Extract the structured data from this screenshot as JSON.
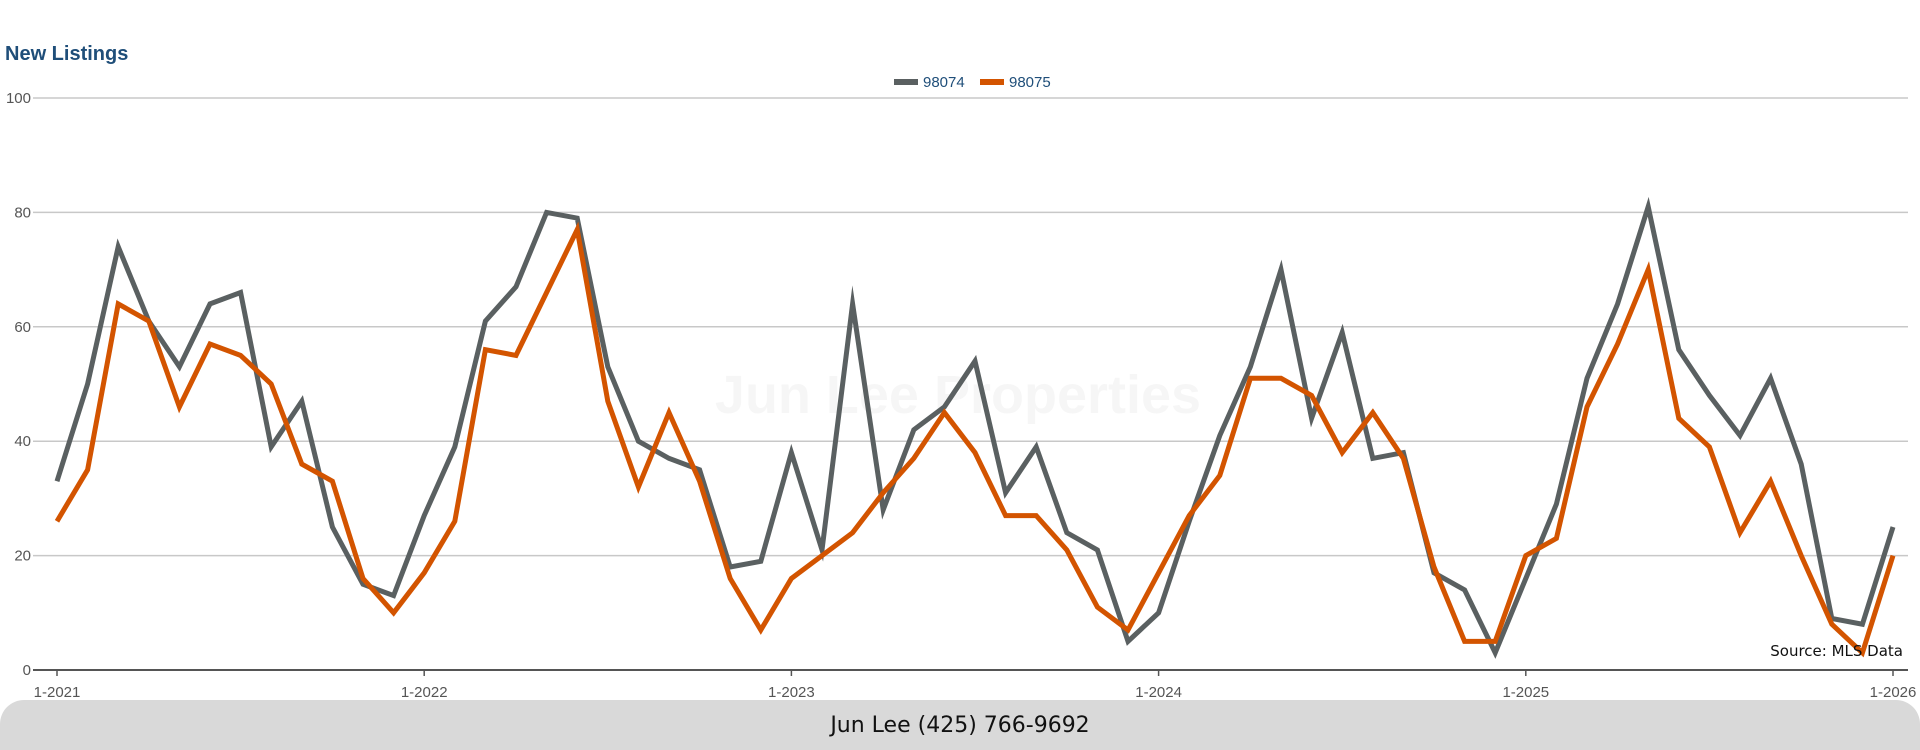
{
  "chart_data": {
    "type": "line",
    "title": "New Listings",
    "xlabel": "",
    "ylabel": "",
    "ylim": [
      0,
      100
    ],
    "yticks": [
      0,
      20,
      40,
      60,
      80,
      100
    ],
    "xtick_labels": [
      "1-2021",
      "1-2022",
      "1-2023",
      "1-2024",
      "1-2025",
      "1-2026"
    ],
    "legend_position": "top-center",
    "grid": true,
    "x_start": "2021-01",
    "x_step": "1 month",
    "series": [
      {
        "name": "98074",
        "color": "#5a6061",
        "values": [
          33,
          50,
          74,
          61,
          53,
          64,
          66,
          39,
          47,
          25,
          15,
          13,
          27,
          39,
          61,
          67,
          80,
          79,
          53,
          40,
          37,
          35,
          18,
          19,
          38,
          21,
          64,
          28,
          42,
          46,
          54,
          31,
          39,
          24,
          21,
          5,
          10,
          26,
          41,
          53,
          70,
          44,
          59,
          37,
          38,
          17,
          14,
          3,
          16,
          29,
          51,
          64,
          81,
          56,
          48,
          41,
          51,
          36,
          9,
          8,
          25
        ]
      },
      {
        "name": "98075",
        "color": "#d35400",
        "values": [
          26,
          35,
          64,
          61,
          46,
          57,
          55,
          50,
          36,
          33,
          16,
          10,
          17,
          26,
          56,
          55,
          66,
          77,
          47,
          32,
          45,
          33,
          16,
          7,
          16,
          20,
          24,
          31,
          37,
          45,
          38,
          27,
          27,
          21,
          11,
          7,
          17,
          27,
          34,
          51,
          51,
          48,
          38,
          45,
          37,
          18,
          5,
          5,
          20,
          23,
          46,
          57,
          70,
          44,
          39,
          24,
          33,
          20,
          8,
          3,
          20
        ]
      }
    ]
  },
  "watermark": "Jun Lee Properties",
  "source_note": "Source: MLS Data",
  "footer": {
    "contact": "Jun Lee (425) 766-9692"
  }
}
